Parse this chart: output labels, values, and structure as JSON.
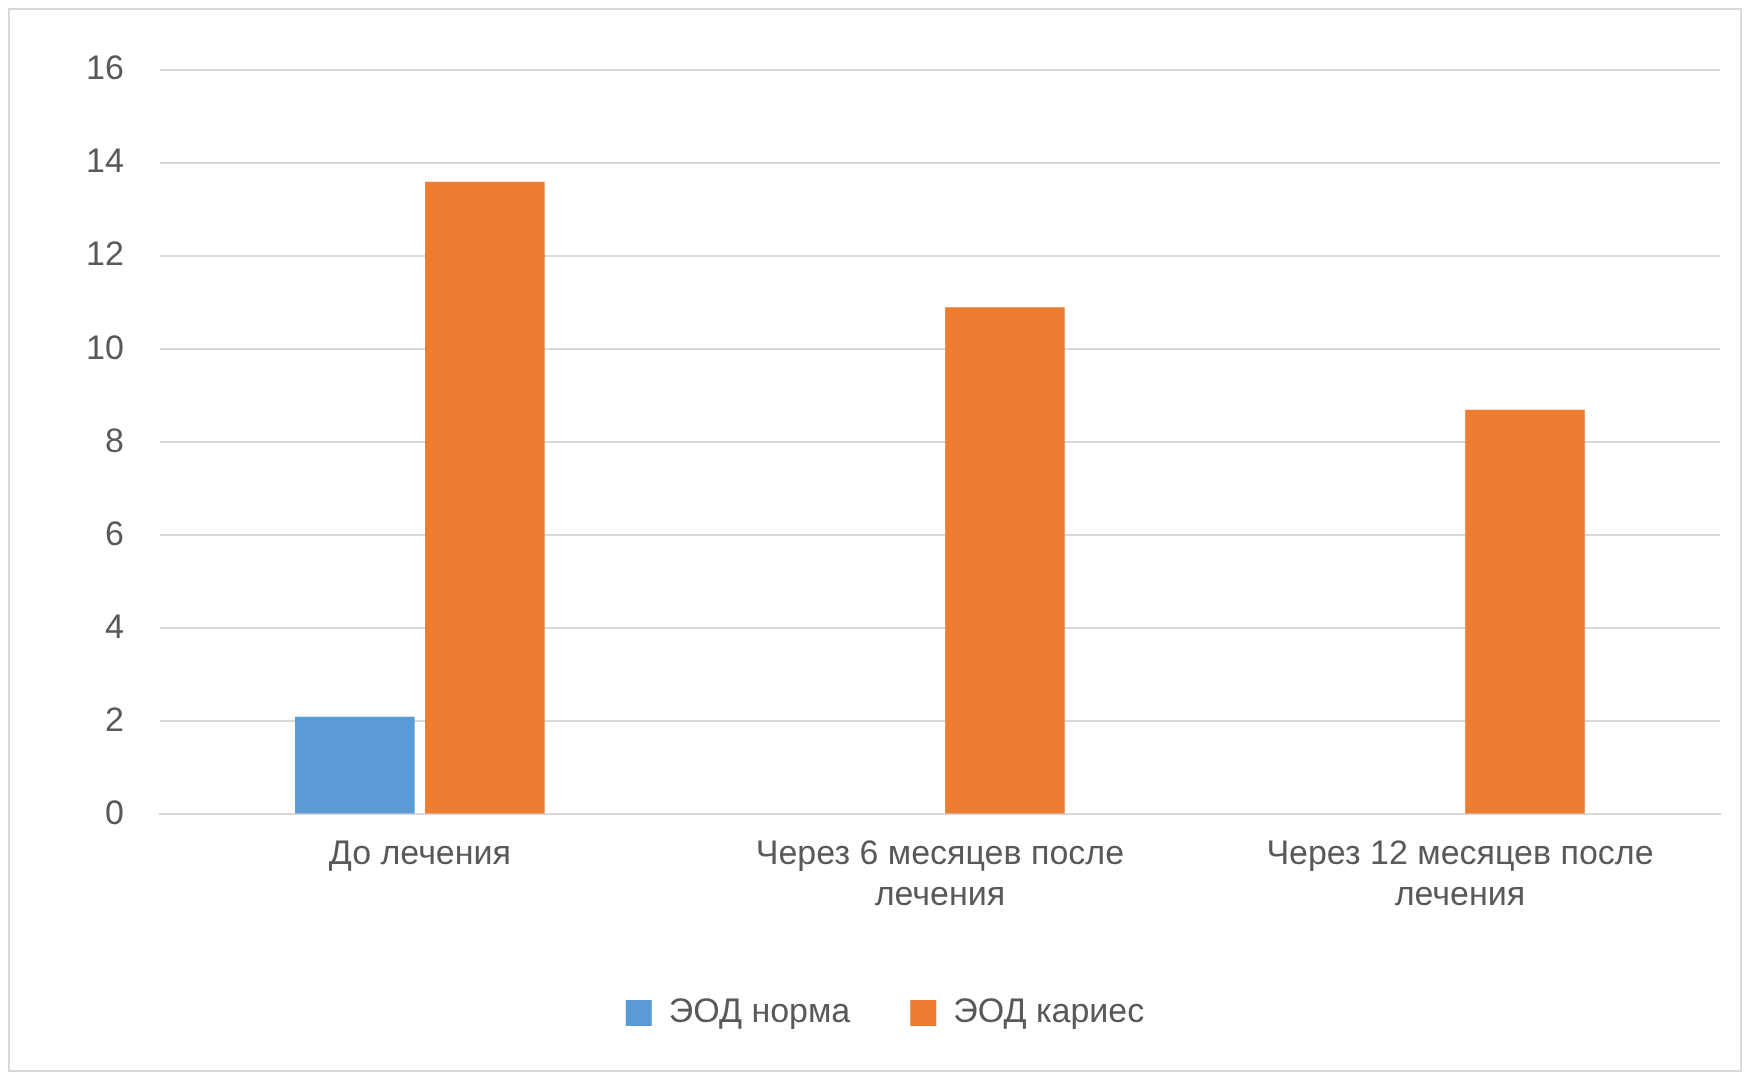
{
  "chart_data": {
    "type": "bar",
    "categories": [
      "До лечения",
      "Через 6 месяцев после лечения",
      "Через 12 месяцев после лечения"
    ],
    "series": [
      {
        "name": "ЭОД норма",
        "color": "#5b9bd5",
        "values": [
          2.1,
          null,
          null
        ]
      },
      {
        "name": "ЭОД кариес",
        "color": "#ed7d31",
        "values": [
          13.6,
          10.9,
          8.7
        ]
      }
    ],
    "ylim": [
      0,
      16
    ],
    "yticks": [
      0,
      2,
      4,
      6,
      8,
      10,
      12,
      14,
      16
    ],
    "grid": "y",
    "legend": "bottom"
  }
}
